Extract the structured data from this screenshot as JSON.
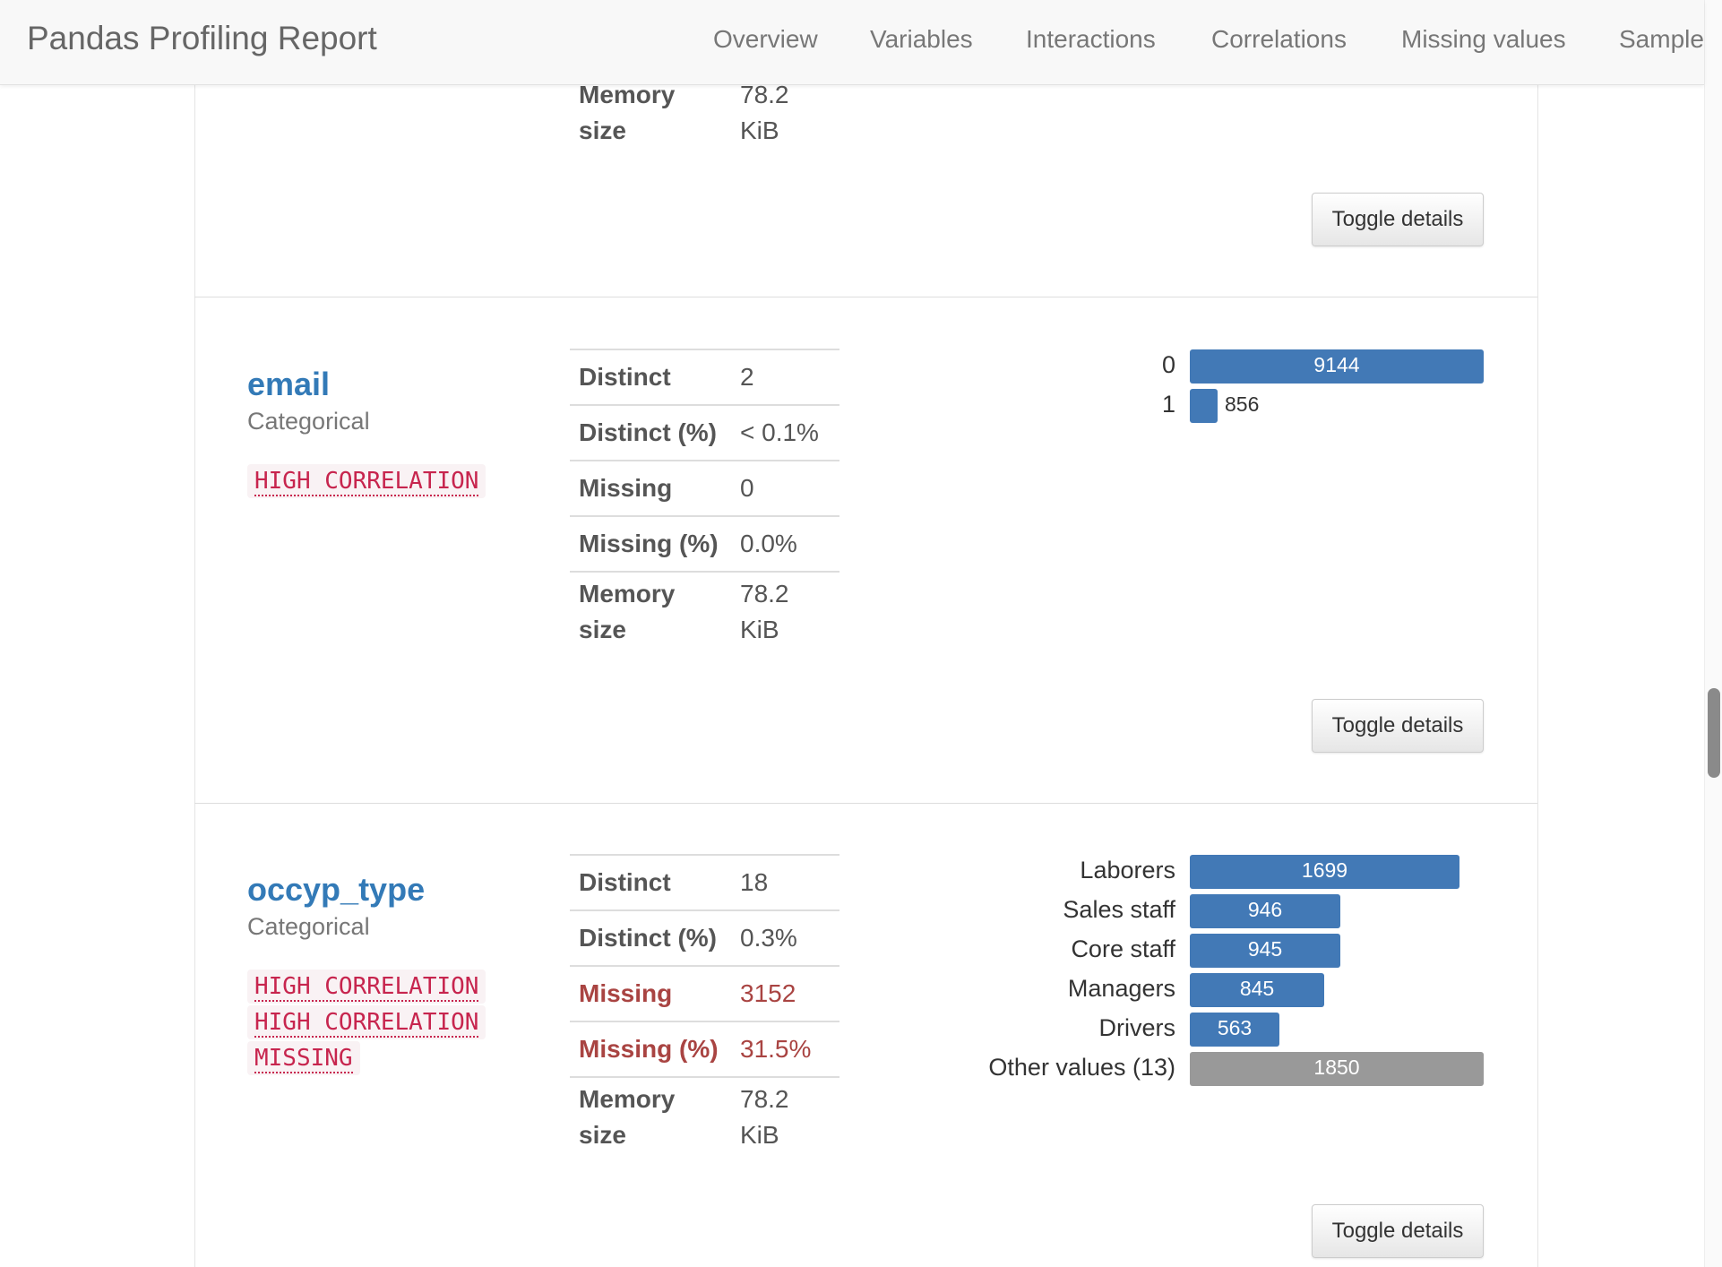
{
  "navbar": {
    "brand": "Pandas Profiling Report",
    "items": [
      "Overview",
      "Variables",
      "Interactions",
      "Correlations",
      "Missing values",
      "Sample"
    ]
  },
  "top_partial": {
    "stat_label_line1": "Memory",
    "stat_label_line2": "size",
    "stat_value_line1": "78.2",
    "stat_value_line2": "KiB",
    "toggle_label": "Toggle details"
  },
  "email": {
    "name": "email",
    "type": "Categorical",
    "badges": [
      "HIGH CORRELATION"
    ],
    "stats": [
      {
        "label": "Distinct",
        "value": "2"
      },
      {
        "label": "Distinct (%)",
        "value": "< 0.1%"
      },
      {
        "label": "Missing",
        "value": "0"
      },
      {
        "label": "Missing (%)",
        "value": "0.0%"
      }
    ],
    "memory": {
      "label_line1": "Memory",
      "label_line2": "size",
      "value_line1": "78.2",
      "value_line2": "KiB"
    },
    "toggle_label": "Toggle details"
  },
  "occyp_type": {
    "name": "occyp_type",
    "type": "Categorical",
    "badges": [
      "HIGH CORRELATION",
      "HIGH CORRELATION",
      "MISSING"
    ],
    "stats": [
      {
        "label": "Distinct",
        "value": "18"
      },
      {
        "label": "Distinct (%)",
        "value": "0.3%"
      },
      {
        "label": "Missing",
        "value": "3152"
      },
      {
        "label": "Missing (%)",
        "value": "31.5%"
      }
    ],
    "memory": {
      "label_line1": "Memory",
      "label_line2": "size",
      "value_line1": "78.2",
      "value_line2": "KiB"
    },
    "toggle_label": "Toggle details"
  },
  "colors": {
    "bar_blue": "#4279b6",
    "bar_gray": "#999999",
    "link_blue": "#337ab7",
    "alert_red": "#a94442",
    "badge_text": "#c7254e",
    "badge_bg": "#f9f2f4"
  },
  "chart_data": [
    {
      "type": "bar",
      "orientation": "horizontal",
      "categories": [
        "0",
        "1"
      ],
      "values": [
        9144,
        856
      ],
      "max_value": 9144
    },
    {
      "type": "bar",
      "orientation": "horizontal",
      "categories": [
        "Laborers",
        "Sales staff",
        "Core staff",
        "Managers",
        "Drivers",
        "Other values (13)"
      ],
      "values": [
        1699,
        946,
        945,
        845,
        563,
        1850
      ],
      "max_value": 1850,
      "other_category": "Other values (13)"
    }
  ]
}
